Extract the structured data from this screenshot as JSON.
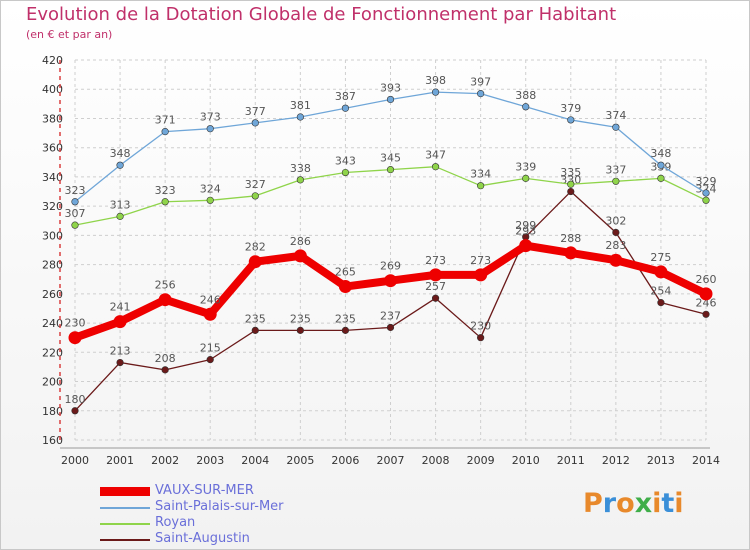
{
  "title": "Evolution de la Dotation Globale de Fonctionnement par Habitant",
  "subtitle": "(en € et par an)",
  "logo": {
    "text": "Proxiti",
    "colors": [
      "#e8892b",
      "#3a8fd8",
      "#e8892b",
      "#3fae49",
      "#e8892b",
      "#3a8fd8",
      "#e8892b"
    ]
  },
  "chart_data": {
    "type": "line",
    "x": [
      2000,
      2001,
      2002,
      2003,
      2004,
      2005,
      2006,
      2007,
      2008,
      2009,
      2010,
      2011,
      2012,
      2013,
      2014
    ],
    "ylim": [
      160,
      420
    ],
    "yticks": [
      160,
      180,
      200,
      220,
      240,
      260,
      280,
      300,
      320,
      340,
      360,
      380,
      400,
      420
    ],
    "grid": "horizontal dashed",
    "legend": "bottom-left",
    "series": [
      {
        "name": "Saint-Augustin",
        "color": "#6b1a1a",
        "values": [
          180,
          213,
          208,
          215,
          235,
          235,
          235,
          237,
          257,
          230,
          299,
          330,
          302,
          254,
          246
        ]
      },
      {
        "name": "Royan",
        "color": "#8fd44a",
        "values": [
          307,
          313,
          323,
          324,
          327,
          338,
          343,
          345,
          347,
          334,
          339,
          335,
          337,
          339,
          324
        ]
      },
      {
        "name": "Saint-Palais-sur-Mer",
        "color": "#6fa6d8",
        "values": [
          323,
          348,
          371,
          373,
          377,
          381,
          387,
          393,
          398,
          397,
          388,
          379,
          374,
          348,
          329
        ]
      },
      {
        "name": "VAUX-SUR-MER",
        "color": "#ee0000",
        "values": [
          230,
          241,
          256,
          246,
          282,
          286,
          265,
          269,
          273,
          273,
          293,
          288,
          283,
          275,
          260
        ]
      }
    ]
  },
  "legend_items": [
    {
      "name": "VAUX-SUR-MER",
      "color": "#ee0000",
      "thick": true
    },
    {
      "name": "Saint-Palais-sur-Mer",
      "color": "#6fa6d8",
      "thick": false
    },
    {
      "name": "Royan",
      "color": "#8fd44a",
      "thick": false
    },
    {
      "name": "Saint-Augustin",
      "color": "#6b1a1a",
      "thick": false
    }
  ]
}
